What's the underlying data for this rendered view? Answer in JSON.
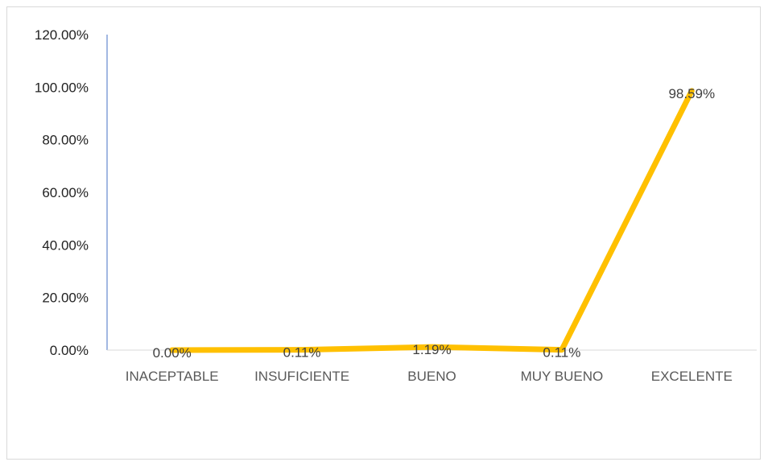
{
  "chart_data": {
    "type": "line",
    "categories": [
      "INACEPTABLE",
      "INSUFICIENTE",
      "BUENO",
      "MUY BUENO",
      "EXCELENTE"
    ],
    "series": [
      {
        "values": [
          0.0,
          0.11,
          1.19,
          0.11,
          98.59
        ],
        "data_labels": [
          "0.00%",
          "0.11%",
          "1.19%",
          "0.11%",
          "98.59%"
        ],
        "color": "#FFC000"
      }
    ],
    "yticks": [
      {
        "value": 0,
        "label": "0.00%"
      },
      {
        "value": 20,
        "label": "20.00%"
      },
      {
        "value": 40,
        "label": "40.00%"
      },
      {
        "value": 60,
        "label": "60.00%"
      },
      {
        "value": 80,
        "label": "80.00%"
      },
      {
        "value": 100,
        "label": "100.00%"
      },
      {
        "value": 120,
        "label": "120.00%"
      }
    ],
    "ylim": [
      0,
      120
    ],
    "grid": false,
    "legend": "none",
    "y_axis_color": "#4472C4",
    "x_axis_color": "#d9d9d9"
  }
}
